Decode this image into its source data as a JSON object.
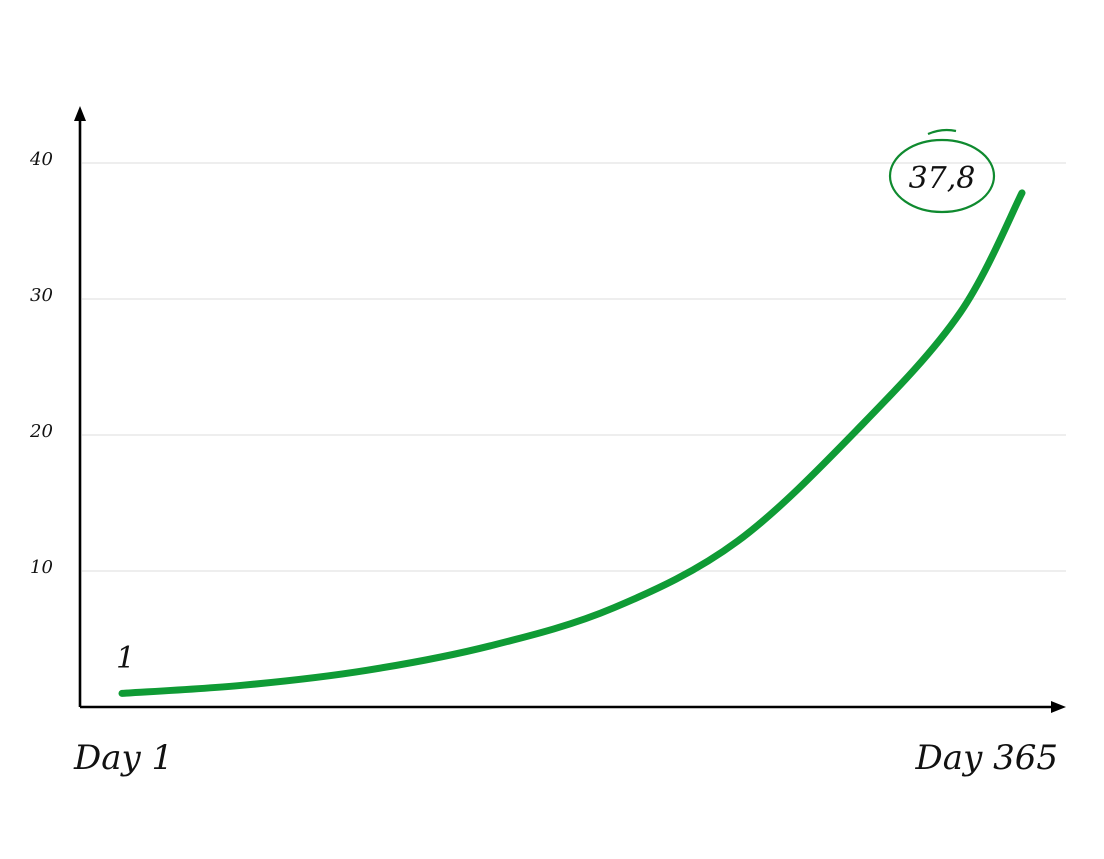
{
  "chart_data": {
    "type": "line",
    "title": "",
    "xlabel": "",
    "ylabel": "",
    "x_start_label": "Day 1",
    "x_end_label": "Day 365",
    "x_range": [
      1,
      365
    ],
    "ylim": [
      0,
      40
    ],
    "y_ticks": [
      "10",
      "20",
      "30",
      "40"
    ],
    "grid": true,
    "series": [
      {
        "color": "#0f9b35",
        "points": [
          [
            1,
            1.0
          ],
          [
            50,
            1.6
          ],
          [
            100,
            2.7
          ],
          [
            150,
            4.5
          ],
          [
            200,
            7.3
          ],
          [
            250,
            12.2
          ],
          [
            300,
            20.7
          ],
          [
            340,
            29.0
          ],
          [
            365,
            37.8
          ]
        ]
      }
    ],
    "annotations": {
      "start_value": "1",
      "end_value": "37,8",
      "end_circle_color": "#0f8a2f"
    }
  }
}
